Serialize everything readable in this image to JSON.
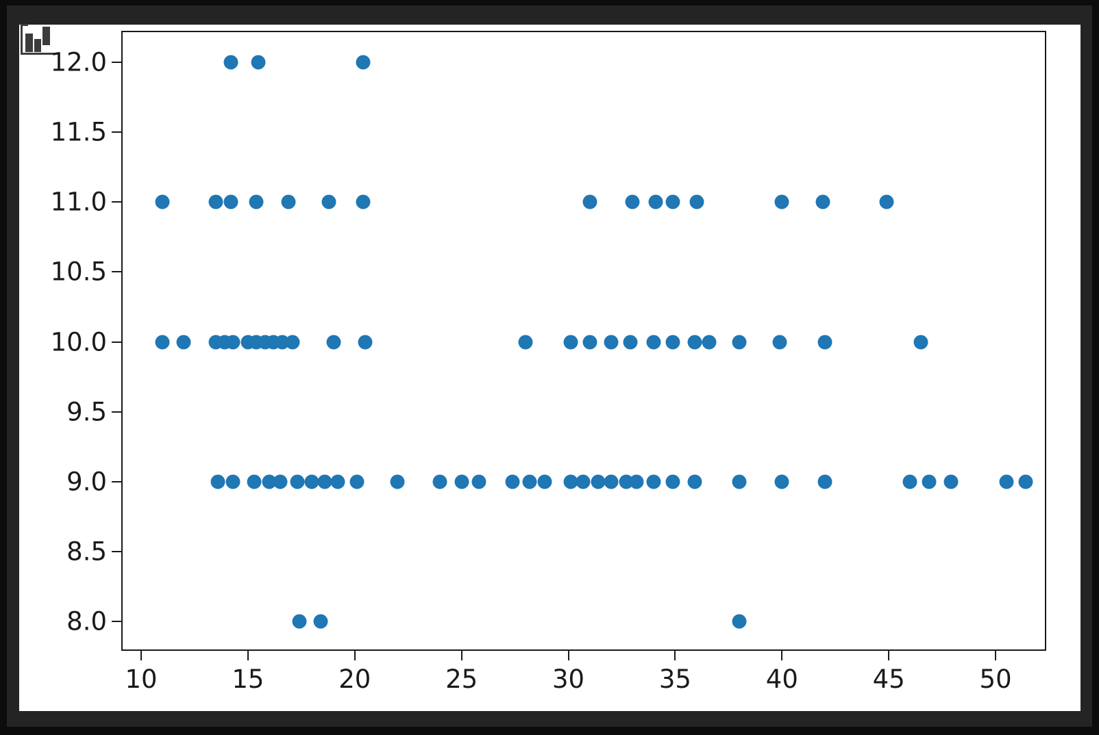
{
  "window": {
    "frame_color": "#242424",
    "outer_border_color": "#0c0c0c",
    "figure_background": "#ffffff"
  },
  "icon": {
    "name": "bar-chart-icon",
    "color": "#3c3c3c"
  },
  "chart_data": {
    "type": "scatter",
    "title": "",
    "xlabel": "",
    "ylabel": "",
    "grid": false,
    "legend": null,
    "marker_color": "#1f77b4",
    "axis_color": "#1a1a1a",
    "xlim": [
      9.07,
      52.37
    ],
    "ylim": [
      7.79,
      12.225
    ],
    "x_ticks": [
      10,
      15,
      20,
      25,
      30,
      35,
      40,
      45,
      50
    ],
    "x_tick_labels": [
      "10",
      "15",
      "20",
      "25",
      "30",
      "35",
      "40",
      "45",
      "50"
    ],
    "y_ticks": [
      12.0,
      11.5,
      11.0,
      10.5,
      10.0,
      9.5,
      9.0,
      8.5,
      8.0
    ],
    "y_tick_labels": [
      "12.0",
      "11.5",
      "11.0",
      "10.5",
      "10.0",
      "9.5",
      "9.0",
      "8.5",
      "8.0"
    ],
    "points": [
      [
        14.2,
        12
      ],
      [
        15.5,
        12
      ],
      [
        20.4,
        12
      ],
      [
        11.0,
        11
      ],
      [
        13.5,
        11
      ],
      [
        14.2,
        11
      ],
      [
        15.4,
        11
      ],
      [
        16.9,
        11
      ],
      [
        18.8,
        11
      ],
      [
        20.4,
        11
      ],
      [
        31.0,
        11
      ],
      [
        33.0,
        11
      ],
      [
        34.1,
        11
      ],
      [
        34.9,
        11
      ],
      [
        36.0,
        11
      ],
      [
        40.0,
        11
      ],
      [
        41.9,
        11
      ],
      [
        44.9,
        11
      ],
      [
        11.0,
        10
      ],
      [
        12.0,
        10
      ],
      [
        13.5,
        10
      ],
      [
        13.9,
        10
      ],
      [
        14.3,
        10
      ],
      [
        15.0,
        10
      ],
      [
        15.4,
        10
      ],
      [
        15.8,
        10
      ],
      [
        16.2,
        10
      ],
      [
        16.6,
        10
      ],
      [
        17.1,
        10
      ],
      [
        19.0,
        10
      ],
      [
        20.5,
        10
      ],
      [
        28.0,
        10
      ],
      [
        30.1,
        10
      ],
      [
        31.0,
        10
      ],
      [
        32.0,
        10
      ],
      [
        32.9,
        10
      ],
      [
        34.0,
        10
      ],
      [
        34.9,
        10
      ],
      [
        35.9,
        10
      ],
      [
        36.6,
        10
      ],
      [
        38.0,
        10
      ],
      [
        39.9,
        10
      ],
      [
        42.0,
        10
      ],
      [
        46.5,
        10
      ],
      [
        13.6,
        9
      ],
      [
        14.3,
        9
      ],
      [
        15.3,
        9
      ],
      [
        16.0,
        9
      ],
      [
        16.5,
        9
      ],
      [
        17.3,
        9
      ],
      [
        18.0,
        9
      ],
      [
        18.6,
        9
      ],
      [
        19.2,
        9
      ],
      [
        20.1,
        9
      ],
      [
        22.0,
        9
      ],
      [
        24.0,
        9
      ],
      [
        25.0,
        9
      ],
      [
        25.8,
        9
      ],
      [
        27.4,
        9
      ],
      [
        28.2,
        9
      ],
      [
        28.9,
        9
      ],
      [
        30.1,
        9
      ],
      [
        30.7,
        9
      ],
      [
        31.4,
        9
      ],
      [
        32.0,
        9
      ],
      [
        32.7,
        9
      ],
      [
        33.2,
        9
      ],
      [
        34.0,
        9
      ],
      [
        34.9,
        9
      ],
      [
        35.9,
        9
      ],
      [
        38.0,
        9
      ],
      [
        40.0,
        9
      ],
      [
        42.0,
        9
      ],
      [
        46.0,
        9
      ],
      [
        46.9,
        9
      ],
      [
        47.9,
        9
      ],
      [
        50.5,
        9
      ],
      [
        51.4,
        9
      ],
      [
        17.4,
        8
      ],
      [
        18.4,
        8
      ],
      [
        38.0,
        8
      ]
    ]
  }
}
